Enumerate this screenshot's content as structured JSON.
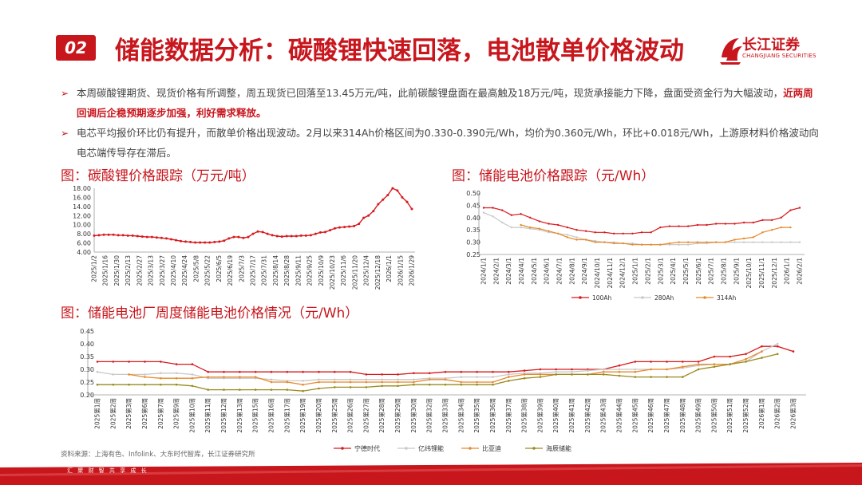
{
  "header": {
    "number": "02",
    "title": "储能数据分析：碳酸锂快速回落，电池散单价格波动",
    "brand_cn": "长江证券",
    "brand_en": "CHANGJIANG SECURITIES"
  },
  "bullets": [
    {
      "text_before": "本周碳酸锂期货、现货价格有所调整，周五现货已回落至13.45万元/吨，此前碳酸锂盘面在最高触及18万元/吨，现货承接能力下降，盘面受资金行为大幅波动，",
      "highlight": "近两周回调后企稳预期逐步加强，利好需求释放。",
      "text_after": ""
    },
    {
      "text_before": "电芯平均报价环比仍有提升，而散单价格出现波动。2月以来314Ah价格区间为0.330-0.390元/Wh，均价为0.360元/Wh，环比+0.018元/Wh，上游原材料价格波动向电芯端传导存在滞后。",
      "highlight": "",
      "text_after": ""
    }
  ],
  "source": "资料来源：上海有色、Infolink、大东时代智库，长江证券研究所",
  "footer": "汇 聚 财 智     共 享 成 长",
  "colors": {
    "accent": "#c8161d",
    "red": "#d7191c",
    "gray": "#c8c8c8",
    "orange": "#e8892b",
    "olive": "#9a8a1e"
  },
  "chart_data": [
    {
      "type": "line",
      "title": "图：碳酸锂价格跟踪（万元/吨）",
      "ylim": [
        4,
        18
      ],
      "yticks": [
        "4.00",
        "6.00",
        "8.00",
        "10.00",
        "12.00",
        "14.00",
        "16.00",
        "18.00"
      ],
      "x_labels": [
        "2025/1/2",
        "2025/1/16",
        "2025/1/30",
        "2025/2/13",
        "2025/2/27",
        "2025/3/13",
        "2025/3/27",
        "2025/4/10",
        "2025/4/24",
        "2025/5/8",
        "2025/5/22",
        "2025/6/5",
        "2025/6/19",
        "2025/7/3",
        "2025/7/17",
        "2025/7/31",
        "2025/8/14",
        "2025/8/28",
        "2025/9/11",
        "2025/9/25",
        "2025/10/9",
        "2025/10/23",
        "2025/11/6",
        "2025/11/20",
        "2025/12/4",
        "2025/12/18",
        "2026/1/1",
        "2026/1/15",
        "2026/1/29"
      ],
      "series": [
        {
          "values": [
            7.6,
            7.7,
            7.8,
            7.8,
            7.8,
            7.7,
            7.7,
            7.6,
            7.6,
            7.5,
            7.4,
            7.3,
            7.3,
            7.2,
            7.1,
            7.0,
            6.8,
            6.6,
            6.4,
            6.3,
            6.2,
            6.1,
            6.1,
            6.1,
            6.1,
            6.2,
            6.3,
            6.5,
            7.0,
            7.3,
            7.3,
            7.1,
            7.3,
            8.0,
            8.5,
            8.4,
            8.0,
            7.7,
            7.5,
            7.4,
            7.5,
            7.5,
            7.5,
            7.6,
            7.6,
            7.7,
            8.0,
            8.3,
            8.4,
            8.8,
            9.2,
            9.4,
            9.5,
            9.6,
            9.7,
            10.2,
            11.5,
            12.0,
            13.0,
            14.5,
            15.5,
            16.5,
            18.0,
            17.5,
            16.0,
            15.0,
            13.45
          ]
        }
      ]
    },
    {
      "type": "line",
      "title": "图：储能电池价格跟踪（元/Wh）",
      "ylim": [
        0.25,
        0.5
      ],
      "yticks": [
        "0.25",
        "0.30",
        "0.35",
        "0.40",
        "0.45",
        "0.50"
      ],
      "x_labels": [
        "2024/1/1",
        "2024/2/1",
        "2024/3/1",
        "2024/4/1",
        "2024/5/1",
        "2024/6/1",
        "2024/7/1",
        "2024/8/1",
        "2024/9/1",
        "2024/10/1",
        "2024/11/1",
        "2024/12/1",
        "2025/1/1",
        "2025/2/1",
        "2025/3/1",
        "2025/4/1",
        "2025/5/1",
        "2025/6/1",
        "2025/7/1",
        "2025/8/1",
        "2025/9/1",
        "2025/10/1",
        "2025/11/1",
        "2025/12/1",
        "2026/1/1",
        "2026/2/1"
      ],
      "series": [
        {
          "name": "100Ah",
          "start_index": 0,
          "values": [
            0.44,
            0.44,
            0.43,
            0.41,
            0.415,
            0.4,
            0.385,
            0.375,
            0.37,
            0.36,
            0.35,
            0.345,
            0.34,
            0.34,
            0.335,
            0.335,
            0.335,
            0.34,
            0.34,
            0.36,
            0.365,
            0.365,
            0.365,
            0.37,
            0.37,
            0.375,
            0.375,
            0.375,
            0.38,
            0.38,
            0.39,
            0.39,
            0.4,
            0.43,
            0.44
          ]
        },
        {
          "name": "280Ah",
          "start_index": 0,
          "values": [
            0.42,
            0.405,
            0.38,
            0.36,
            0.36,
            0.355,
            0.35,
            0.34,
            0.335,
            0.33,
            0.32,
            0.31,
            0.305,
            0.3,
            0.3,
            0.295,
            0.295,
            0.29,
            0.29,
            0.29,
            0.29,
            0.29,
            0.29,
            0.295,
            0.295,
            0.3,
            0.3,
            0.3,
            0.3,
            0.3,
            0.3,
            0.3,
            0.3,
            0.3,
            0.3
          ]
        },
        {
          "name": "314Ah",
          "start_index": 4,
          "values": [
            0.37,
            0.36,
            0.355,
            0.345,
            0.335,
            0.32,
            0.31,
            0.31,
            0.3,
            0.3,
            0.295,
            0.295,
            0.29,
            0.29,
            0.29,
            0.29,
            0.295,
            0.3,
            0.3,
            0.3,
            0.3,
            0.3,
            0.3,
            0.31,
            0.315,
            0.32,
            0.34,
            0.35,
            0.36,
            0.36
          ]
        }
      ]
    },
    {
      "type": "line",
      "title": "图：储能电池厂周度储能电池价格情况（元/Wh）",
      "ylim": [
        0.2,
        0.45
      ],
      "yticks": [
        "0.20",
        "0.25",
        "0.30",
        "0.35",
        "0.40",
        "0.45"
      ],
      "x_labels": [
        "2025第1周",
        "2025第2周",
        "2025第3周",
        "2025第6周",
        "2025第7周",
        "2025第9周",
        "2025第10周",
        "2025第11周",
        "2025第12周",
        "2025第13周",
        "2025第15周",
        "2025第16周",
        "2025第17周",
        "2025第19周",
        "2025第20周",
        "2025第25周",
        "2025第26周",
        "2025第27周",
        "2025第28周",
        "2025第29周",
        "2025第30周",
        "2025第32周",
        "2025第33周",
        "2025第34周",
        "2025第35周",
        "2025第36周",
        "2025第37周",
        "2025第38周",
        "2025第39周",
        "2025第40周",
        "2025第41周",
        "2025第42周",
        "2025第43周",
        "2025第44周",
        "2025第45周",
        "2025第46周",
        "2025第47周",
        "2025第48周",
        "2025第49周",
        "2025第50周",
        "2025第51周",
        "2025第52周",
        "2026第1周",
        "2026第2周",
        "2026第3周"
      ],
      "series": [
        {
          "name": "宁德时代",
          "values": [
            0.33,
            0.33,
            0.33,
            0.33,
            0.33,
            0.32,
            0.32,
            0.29,
            0.29,
            0.29,
            0.29,
            0.29,
            0.29,
            0.29,
            0.29,
            0.29,
            0.29,
            0.28,
            0.28,
            0.28,
            0.285,
            0.285,
            0.29,
            0.29,
            0.29,
            0.29,
            0.29,
            0.295,
            0.3,
            0.3,
            0.3,
            0.3,
            0.3,
            0.315,
            0.33,
            0.33,
            0.33,
            0.33,
            0.33,
            0.35,
            0.35,
            0.36,
            0.39,
            0.39,
            0.37
          ]
        },
        {
          "name": "亿纬锂能",
          "values": [
            0.29,
            0.28,
            0.28,
            0.28,
            0.285,
            0.285,
            0.28,
            0.265,
            0.265,
            0.265,
            0.265,
            0.26,
            0.255,
            0.255,
            0.26,
            0.26,
            0.26,
            0.26,
            0.26,
            0.26,
            0.26,
            0.265,
            0.265,
            0.27,
            0.27,
            0.27,
            0.28,
            0.285,
            0.285,
            0.29,
            0.29,
            0.295,
            0.3,
            0.3,
            0.3,
            0.3,
            0.3,
            0.305,
            0.315,
            0.32,
            0.32,
            0.33,
            0.37,
            0.4
          ]
        },
        {
          "name": "比亚迪",
          "values": [
            null,
            null,
            0.28,
            0.27,
            0.265,
            0.265,
            0.265,
            0.27,
            0.27,
            0.27,
            0.27,
            0.25,
            0.25,
            0.24,
            0.25,
            0.25,
            0.25,
            0.25,
            0.25,
            0.25,
            0.25,
            0.26,
            0.26,
            0.25,
            0.25,
            0.25,
            0.27,
            0.28,
            0.28,
            0.28,
            0.28,
            0.28,
            0.29,
            0.29,
            0.29,
            0.3,
            0.3,
            0.31,
            0.32,
            0.32,
            0.32,
            0.34,
            0.37
          ]
        },
        {
          "name": "海辰储能",
          "values": [
            0.24,
            0.24,
            0.24,
            0.24,
            0.24,
            0.24,
            0.235,
            0.22,
            0.22,
            0.22,
            0.22,
            0.22,
            0.22,
            0.215,
            0.225,
            0.23,
            0.23,
            0.23,
            0.235,
            0.235,
            0.24,
            0.24,
            0.24,
            0.24,
            0.24,
            0.24,
            0.255,
            0.265,
            0.27,
            0.28,
            0.28,
            0.28,
            0.28,
            0.275,
            0.27,
            0.27,
            0.27,
            0.27,
            0.3,
            0.31,
            0.32,
            0.33,
            0.345,
            0.36
          ]
        }
      ]
    }
  ]
}
